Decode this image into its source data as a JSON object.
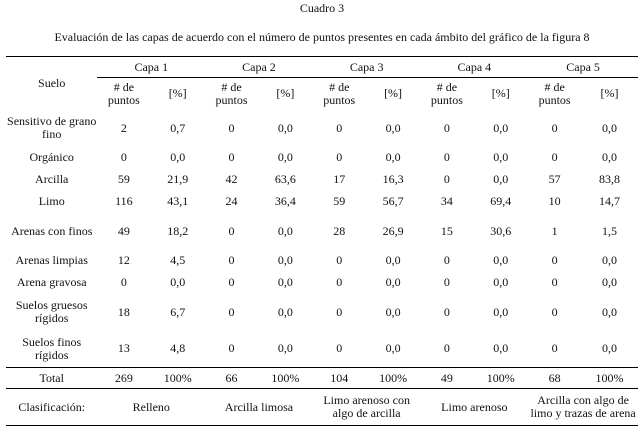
{
  "caption": {
    "number": "Cuadro 3",
    "title": "Evaluación de las capas de acuerdo con el número de puntos presentes en cada ámbito del gráfico de la figura 8"
  },
  "table": {
    "suelo_header": "Suelo",
    "capas": [
      "Capa 1",
      "Capa 2",
      "Capa 3",
      "Capa 4",
      "Capa 5"
    ],
    "sub_headers": {
      "count": "# de puntos",
      "percent": "[%]"
    },
    "rows": [
      {
        "suelo": "Sensitivo de grano fino",
        "cells": [
          "2",
          "0,7",
          "0",
          "0,0",
          "0",
          "0,0",
          "0",
          "0,0",
          "0",
          "0,0"
        ]
      },
      {
        "suelo": "Orgánico",
        "cells": [
          "0",
          "0,0",
          "0",
          "0,0",
          "0",
          "0,0",
          "0",
          "0,0",
          "0",
          "0,0"
        ]
      },
      {
        "suelo": "Arcilla",
        "cells": [
          "59",
          "21,9",
          "42",
          "63,6",
          "17",
          "16,3",
          "0",
          "0,0",
          "57",
          "83,8"
        ]
      },
      {
        "suelo": "Limo",
        "cells": [
          "116",
          "43,1",
          "24",
          "36,4",
          "59",
          "56,7",
          "34",
          "69,4",
          "10",
          "14,7"
        ]
      },
      {
        "suelo": "Arenas con finos",
        "cells": [
          "49",
          "18,2",
          "0",
          "0,0",
          "28",
          "26,9",
          "15",
          "30,6",
          "1",
          "1,5"
        ]
      },
      {
        "suelo": "Arenas limpias",
        "cells": [
          "12",
          "4,5",
          "0",
          "0,0",
          "0",
          "0,0",
          "0",
          "0,0",
          "0",
          "0,0"
        ]
      },
      {
        "suelo": "Arena gravosa",
        "cells": [
          "0",
          "0,0",
          "0",
          "0,0",
          "0",
          "0,0",
          "0",
          "0,0",
          "0",
          "0,0"
        ]
      },
      {
        "suelo": "Suelos gruesos rígidos",
        "cells": [
          "18",
          "6,7",
          "0",
          "0,0",
          "0",
          "0,0",
          "0",
          "0,0",
          "0",
          "0,0"
        ]
      },
      {
        "suelo": "Suelos finos rígidos",
        "cells": [
          "13",
          "4,8",
          "0",
          "0,0",
          "0",
          "0,0",
          "0",
          "0,0",
          "0",
          "0,0"
        ]
      }
    ],
    "total": {
      "label": "Total",
      "cells": [
        "269",
        "100%",
        "66",
        "100%",
        "104",
        "100%",
        "49",
        "100%",
        "68",
        "100%"
      ]
    },
    "clasificacion": {
      "label": "Clasificación:",
      "values": [
        "Relleno",
        "Arcilla limosa",
        "Limo arenoso con algo de arcilla",
        "Limo arenoso",
        "Arcilla con algo de limo y trazas de arena"
      ]
    }
  }
}
